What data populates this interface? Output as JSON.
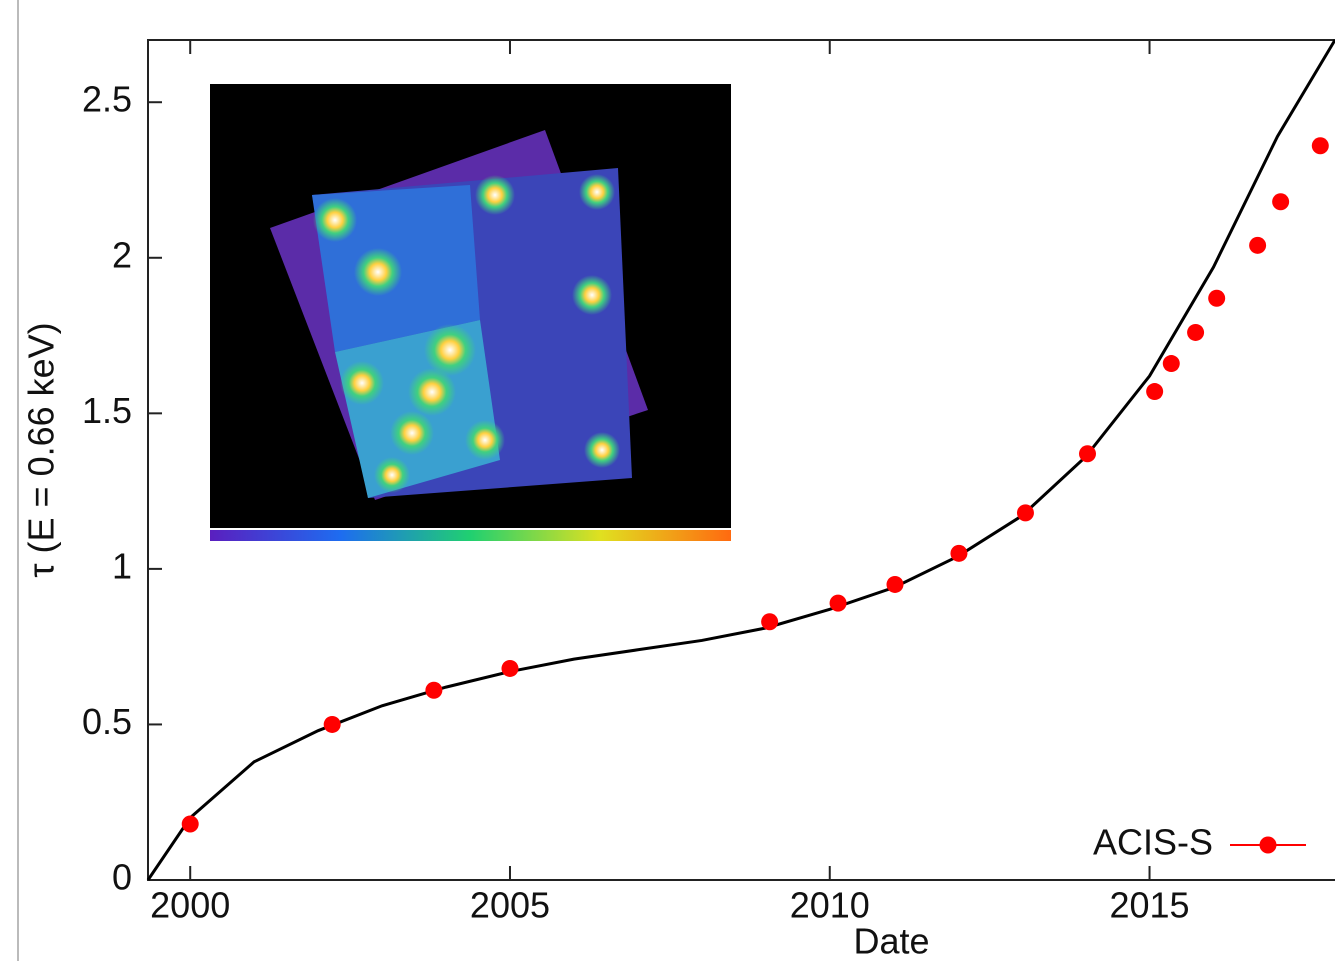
{
  "chart_data": {
    "type": "scatter",
    "xlabel": "Date",
    "ylabel": "τ (E = 0.66 keV)",
    "xlim": [
      1999.34,
      2017.9
    ],
    "xticks": [
      2000,
      2005,
      2010,
      2015
    ],
    "ylim": [
      0,
      2.7
    ],
    "yticks": [
      0,
      0.5,
      1,
      1.5,
      2,
      2.5
    ],
    "legend": "lower right",
    "series": [
      {
        "name": "ACIS-S",
        "color": "#ff0000",
        "x": [
          2000.0,
          2002.22,
          2003.81,
          2005.0,
          2009.06,
          2010.13,
          2011.02,
          2012.02,
          2013.06,
          2014.03,
          2015.08,
          2015.34,
          2015.72,
          2016.05,
          2016.69,
          2017.05,
          2017.67
        ],
        "values": [
          0.18,
          0.5,
          0.61,
          0.68,
          0.83,
          0.89,
          0.95,
          1.05,
          1.18,
          1.37,
          1.57,
          1.66,
          1.76,
          1.87,
          2.04,
          2.18,
          2.36
        ]
      }
    ],
    "fit": {
      "color": "#000000",
      "x": [
        1999.34,
        2000,
        2001,
        2002,
        2003,
        2004,
        2005,
        2006,
        2007,
        2008,
        2009,
        2010,
        2011,
        2012,
        2013,
        2014,
        2015,
        2016,
        2017,
        2017.9
      ],
      "values": [
        0,
        0.2,
        0.38,
        0.48,
        0.56,
        0.62,
        0.67,
        0.71,
        0.74,
        0.77,
        0.81,
        0.87,
        0.94,
        1.04,
        1.17,
        1.36,
        1.62,
        1.97,
        2.39,
        2.7
      ]
    }
  }
}
